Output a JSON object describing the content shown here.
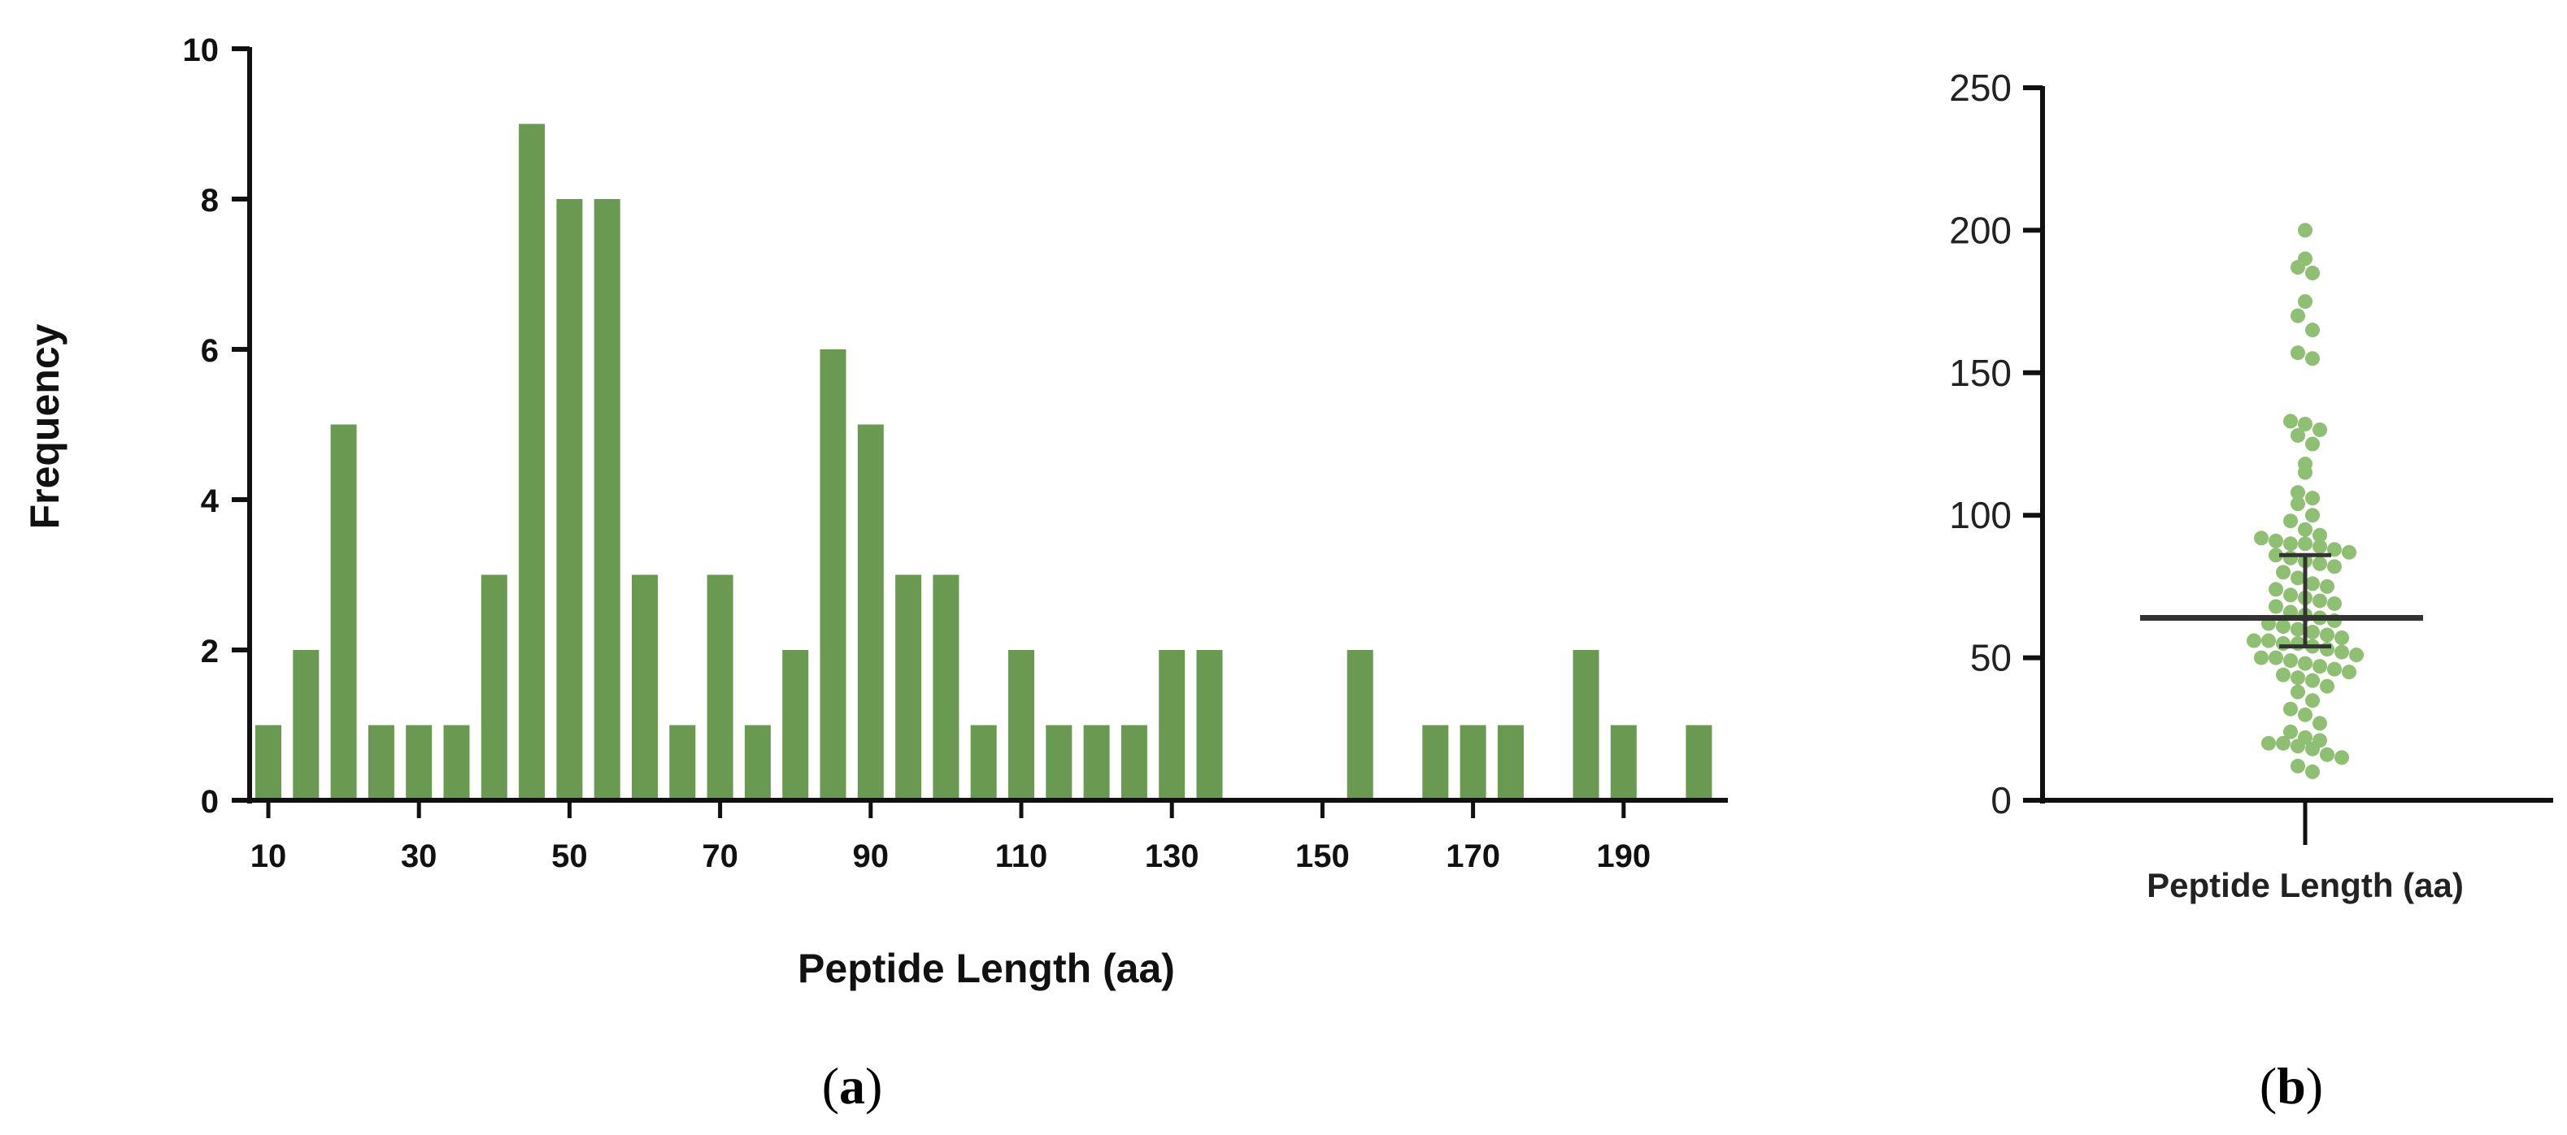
{
  "chart_data": [
    {
      "panel": "(a)",
      "type": "bar",
      "xlabel": "Peptide Length (aa)",
      "ylabel": "Frequency",
      "ylim": [
        0,
        10
      ],
      "yticks": [
        0,
        2,
        4,
        6,
        8,
        10
      ],
      "xticks": [
        10,
        30,
        50,
        70,
        90,
        110,
        130,
        150,
        170,
        190
      ],
      "color": "#6a9a52",
      "x": [
        10,
        15,
        20,
        25,
        30,
        35,
        40,
        45,
        50,
        55,
        60,
        65,
        70,
        75,
        80,
        85,
        90,
        95,
        100,
        105,
        110,
        115,
        120,
        125,
        130,
        135,
        140,
        145,
        150,
        155,
        160,
        165,
        170,
        175,
        180,
        185,
        190,
        195,
        200
      ],
      "values": [
        1,
        2,
        5,
        1,
        1,
        1,
        3,
        9,
        8,
        8,
        3,
        1,
        3,
        1,
        2,
        6,
        5,
        3,
        3,
        1,
        2,
        1,
        1,
        1,
        2,
        2,
        0,
        0,
        0,
        2,
        0,
        1,
        1,
        1,
        0,
        2,
        1,
        0,
        1
      ],
      "grid": false
    },
    {
      "panel": "(b)",
      "type": "scatter",
      "xlabel": "Peptide Length (aa)",
      "ylabel": "",
      "ylim": [
        0,
        250
      ],
      "yticks": [
        0,
        50,
        100,
        150,
        200,
        250
      ],
      "color": "#8fbf73",
      "median": 64,
      "error_low": 54,
      "error_high": 86,
      "values": [
        200,
        190,
        187,
        185,
        175,
        170,
        165,
        157,
        155,
        133,
        132,
        130,
        128,
        125,
        118,
        115,
        108,
        106,
        104,
        100,
        98,
        95,
        93,
        92,
        91,
        90,
        90,
        89,
        88,
        87,
        86,
        85,
        84,
        83,
        82,
        80,
        78,
        76,
        75,
        74,
        72,
        71,
        70,
        69,
        68,
        66,
        65,
        64,
        63,
        62,
        61,
        60,
        59,
        58,
        57,
        56,
        56,
        55,
        55,
        54,
        53,
        52,
        51,
        50,
        50,
        49,
        48,
        47,
        46,
        45,
        44,
        43,
        42,
        40,
        38,
        35,
        32,
        30,
        27,
        24,
        22,
        21,
        20,
        20,
        19,
        18,
        16,
        15,
        12,
        10
      ],
      "grid": false
    }
  ],
  "labels": {
    "panel_a": "(a)",
    "panel_b": "(b)"
  }
}
